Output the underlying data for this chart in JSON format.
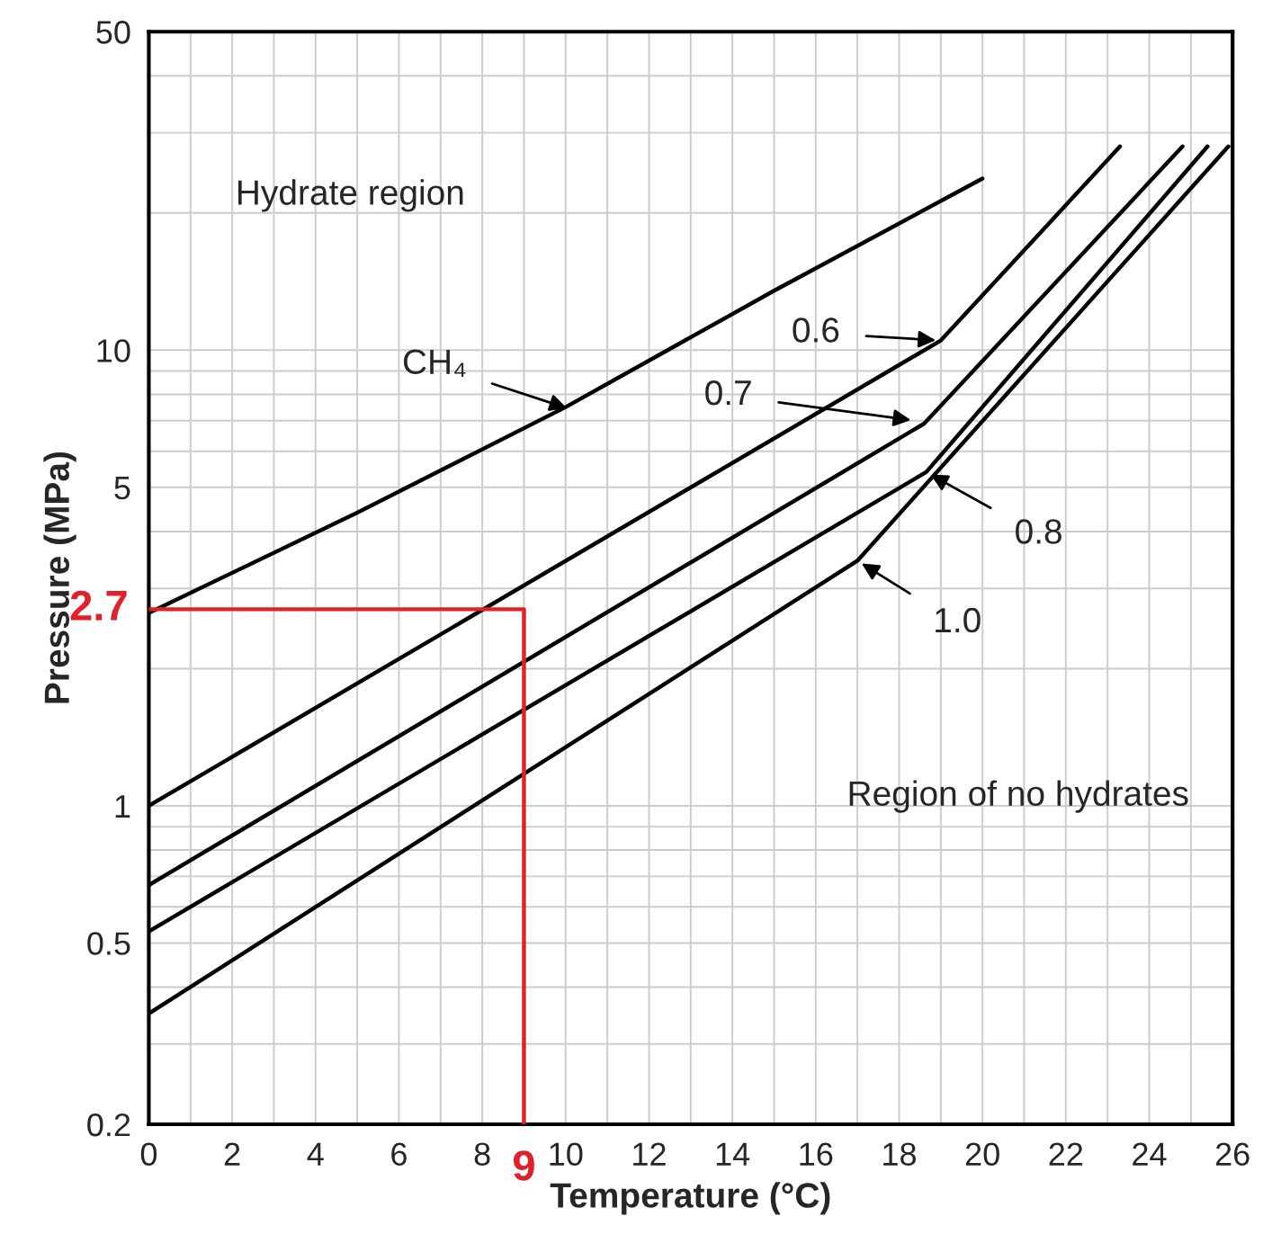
{
  "chart_data": {
    "type": "line",
    "xlabel": "Temperature (°C)",
    "ylabel": "Pressure (MPa)",
    "log": "y",
    "xlim": [
      0,
      26
    ],
    "xticks": [
      0,
      2,
      4,
      6,
      8,
      10,
      12,
      14,
      16,
      18,
      20,
      22,
      24,
      26
    ],
    "ylim": [
      0.2,
      50
    ],
    "yticks": [
      0.2,
      0.5,
      1,
      5,
      10,
      50
    ],
    "grid": true,
    "marker": "none",
    "line_style": "solid",
    "series": [
      {
        "color": "#000000",
        "x": [
          0,
          5,
          10,
          15,
          20
        ],
        "values": [
          2.65,
          4.4,
          7.5,
          13.5,
          23.8
        ]
      },
      {
        "color": "#000000",
        "x": [
          0,
          19,
          23.3
        ],
        "values": [
          1.0,
          10.5,
          28
        ]
      },
      {
        "color": "#000000",
        "x": [
          0,
          18.6,
          24.8
        ],
        "values": [
          0.67,
          6.9,
          28
        ]
      },
      {
        "color": "#000000",
        "x": [
          0,
          18.65,
          25.4
        ],
        "values": [
          0.53,
          5.4,
          28
        ]
      },
      {
        "color": "#000000",
        "x": [
          0,
          17,
          25.9
        ],
        "values": [
          0.35,
          3.45,
          28
        ]
      },
      {
        "color": "#e0202a",
        "x": [
          0,
          9,
          9
        ],
        "values": [
          2.7,
          2.7,
          0.2
        ]
      }
    ],
    "annotations": [
      "Hydrate region",
      "Region of no hydrates",
      {
        "text": "CH₄",
        "x": 10.15,
        "y": 7.4
      },
      {
        "text": "0.6",
        "x": 19,
        "y": 10.5
      },
      {
        "text": "0.7",
        "x": 18.4,
        "y": 7
      },
      {
        "text": "0.8",
        "x": 18.65,
        "y": 5.4
      },
      {
        "text": "1.0",
        "x": 17,
        "y": 3.45
      },
      {
        "text": "2.7",
        "x": 0,
        "y": 2.7
      },
      {
        "text": "9",
        "x": 9,
        "y": 0.2
      }
    ]
  }
}
